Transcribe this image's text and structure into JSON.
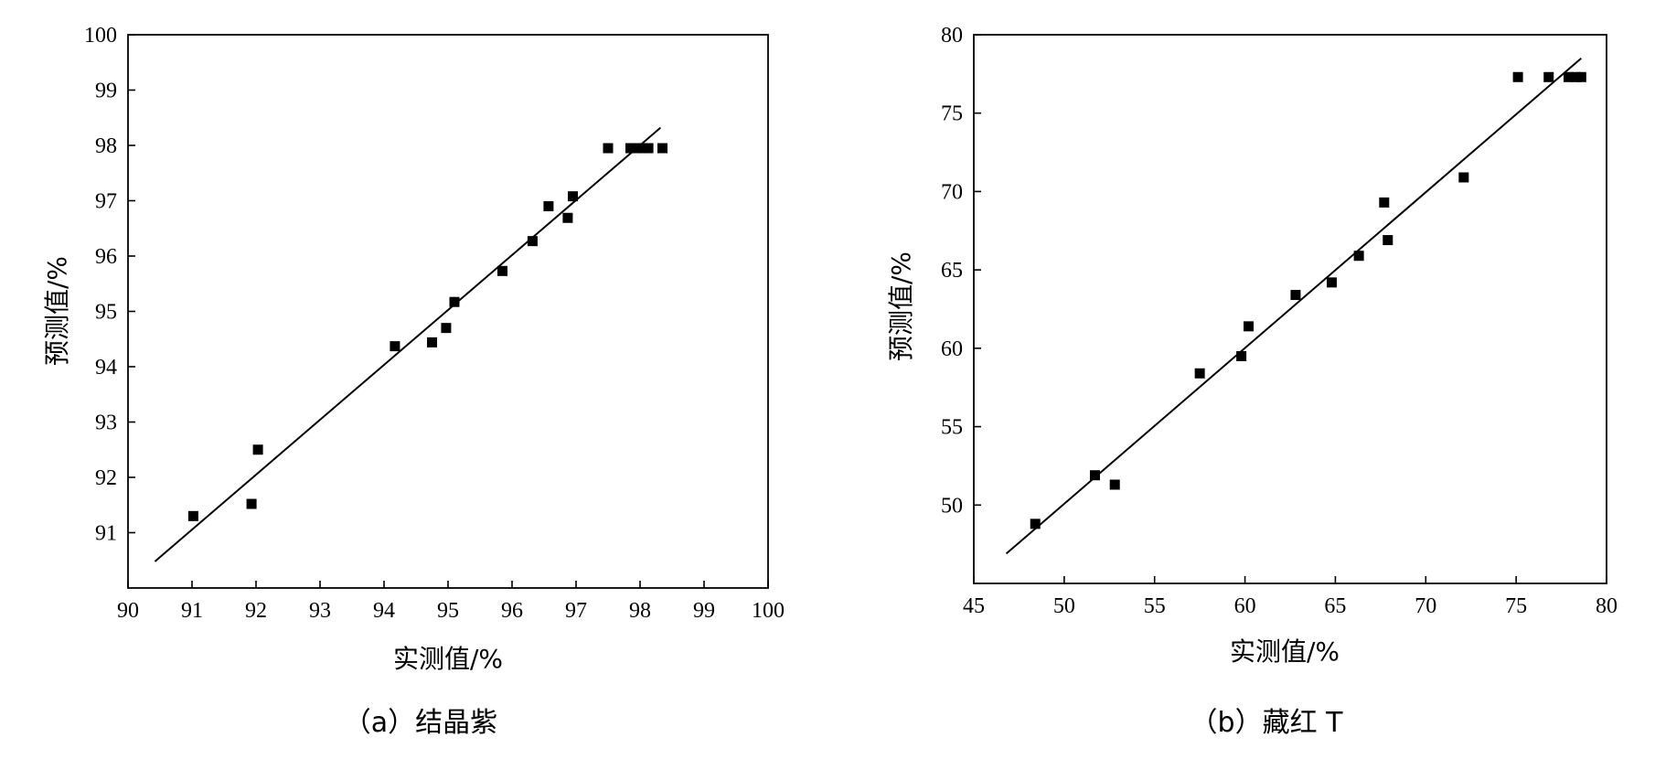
{
  "chart_data": [
    {
      "type": "scatter",
      "caption": "（a）结晶紫",
      "xlabel": "实测值/%",
      "ylabel": "预测值/%",
      "xlim": [
        90,
        100
      ],
      "ylim": [
        90,
        100
      ],
      "xticks": [
        90,
        91,
        92,
        93,
        94,
        95,
        96,
        97,
        98,
        99,
        100
      ],
      "yticks": [
        91,
        92,
        93,
        94,
        95,
        96,
        97,
        98,
        99,
        100
      ],
      "grid": false,
      "marker": "square",
      "color": "#000000",
      "points": [
        {
          "x": 91.02,
          "y": 91.3
        },
        {
          "x": 91.93,
          "y": 91.52
        },
        {
          "x": 92.03,
          "y": 92.5
        },
        {
          "x": 94.17,
          "y": 94.37
        },
        {
          "x": 94.75,
          "y": 94.44
        },
        {
          "x": 94.97,
          "y": 94.7
        },
        {
          "x": 95.1,
          "y": 95.17
        },
        {
          "x": 95.85,
          "y": 95.73
        },
        {
          "x": 96.32,
          "y": 96.27
        },
        {
          "x": 96.57,
          "y": 96.9
        },
        {
          "x": 96.87,
          "y": 96.69
        },
        {
          "x": 96.95,
          "y": 97.08
        },
        {
          "x": 97.5,
          "y": 97.95
        },
        {
          "x": 97.85,
          "y": 97.95
        },
        {
          "x": 97.95,
          "y": 97.95
        },
        {
          "x": 98.05,
          "y": 97.95
        },
        {
          "x": 98.13,
          "y": 97.95
        },
        {
          "x": 98.35,
          "y": 97.95
        }
      ],
      "fit_line": {
        "x": [
          90.42,
          98.32
        ],
        "y": [
          90.48,
          98.32
        ]
      }
    },
    {
      "type": "scatter",
      "caption": "（b）藏红 T",
      "xlabel": "实测值/%",
      "ylabel": "预测值/%",
      "xlim": [
        45,
        80
      ],
      "ylim": [
        45,
        80
      ],
      "xticks": [
        45,
        50,
        55,
        60,
        65,
        70,
        75,
        80
      ],
      "yticks": [
        50,
        55,
        60,
        65,
        70,
        75,
        80
      ],
      "grid": false,
      "marker": "square",
      "color": "#000000",
      "points": [
        {
          "x": 48.4,
          "y": 48.8
        },
        {
          "x": 51.7,
          "y": 51.9
        },
        {
          "x": 52.8,
          "y": 51.3
        },
        {
          "x": 57.5,
          "y": 58.4
        },
        {
          "x": 59.8,
          "y": 59.5
        },
        {
          "x": 60.2,
          "y": 61.4
        },
        {
          "x": 62.8,
          "y": 63.4
        },
        {
          "x": 64.8,
          "y": 64.2
        },
        {
          "x": 66.3,
          "y": 65.9
        },
        {
          "x": 67.7,
          "y": 69.3
        },
        {
          "x": 67.9,
          "y": 66.9
        },
        {
          "x": 72.1,
          "y": 70.9
        },
        {
          "x": 75.1,
          "y": 77.3
        },
        {
          "x": 76.8,
          "y": 77.3
        },
        {
          "x": 77.9,
          "y": 77.3
        },
        {
          "x": 78.3,
          "y": 77.3
        },
        {
          "x": 78.6,
          "y": 77.3
        }
      ],
      "fit_line": {
        "x": [
          46.8,
          78.6
        ],
        "y": [
          46.9,
          78.5
        ]
      }
    }
  ]
}
